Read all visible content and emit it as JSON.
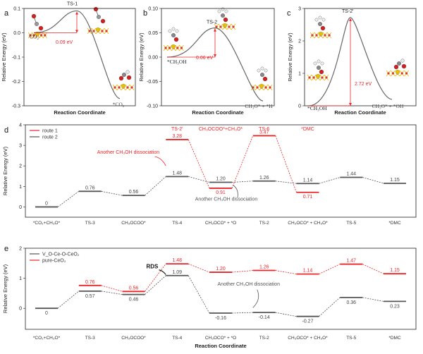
{
  "chart_data": [
    {
      "panel": "a",
      "type": "line",
      "xlabel": "Reaction Coordinate",
      "ylabel": "Relative Energy (eV)",
      "ylim": [
        -0.3,
        0.1
      ],
      "yticks": [
        "-0.3",
        "-0.2",
        "-0.1",
        "0.0",
        "0.1"
      ],
      "states": [
        "CO₂",
        "TS-1",
        "*CO₂"
      ],
      "x": [
        0,
        0.5,
        1
      ],
      "y": [
        0.0,
        0.09,
        -0.27
      ],
      "barrier_label": "0.09 eV"
    },
    {
      "panel": "b",
      "type": "line",
      "xlabel": "Reaction Coordinate",
      "ylabel": "Relative Energy (eV)",
      "ylim": [
        -0.1,
        0.1
      ],
      "yticks": [
        "-0.10",
        "-0.05",
        "0.00",
        "0.05",
        "0.10"
      ],
      "states": [
        "*CH₃OH",
        "TS-2",
        "CH₃O* + *H"
      ],
      "x": [
        0,
        0.5,
        1
      ],
      "y": [
        0.0,
        0.06,
        -0.09
      ],
      "barrier_label": "0.06 eV"
    },
    {
      "panel": "c",
      "type": "line",
      "xlabel": "Reaction Coordinate",
      "ylabel": "Relative Energy (eV)",
      "ylim": [
        0,
        3
      ],
      "yticks": [
        "0",
        "1",
        "2",
        "3"
      ],
      "states": [
        "*CH₃OH",
        "TS-2'",
        "CH₃O* + *OH"
      ],
      "x": [
        0,
        0.5,
        1
      ],
      "y": [
        0.0,
        2.72,
        0.2
      ],
      "barrier_label": "2.72 eV"
    },
    {
      "panel": "d",
      "type": "line",
      "xlabel": "",
      "ylabel": "Relative Energy (eV)",
      "ylim": [
        -0.5,
        4
      ],
      "yticks": [
        "0",
        "1",
        "2",
        "3",
        "4"
      ],
      "categories": [
        "*CO₂+CH₃O*",
        "TS-3",
        "CH₃OCOO*",
        "TS-4",
        "CH₃OCO* + *O",
        "TS-2",
        "CH₃OCO* + CH₃O*",
        "TS-5",
        "*DMC"
      ],
      "series": [
        {
          "name": "route 1",
          "color": "#e8262a",
          "points": [
            [
              3,
              3.28
            ],
            [
              4,
              0.91
            ],
            [
              5,
              3.47
            ],
            [
              6,
              0.71
            ]
          ],
          "labels": [
            "3.28",
            "0.91",
            "3.47",
            "0.71"
          ],
          "top_labels": [
            "TS-2'",
            "CH₃OCOO*+CH₃O*",
            "TS-6",
            "*DMC"
          ]
        },
        {
          "name": "route 2",
          "color": "#555555",
          "points": [
            [
              0,
              0
            ],
            [
              1,
              0.76
            ],
            [
              2,
              0.56
            ],
            [
              3,
              1.48
            ],
            [
              4,
              1.2
            ],
            [
              5,
              1.26
            ],
            [
              6,
              1.14
            ],
            [
              7,
              1.44
            ],
            [
              8,
              1.15
            ]
          ],
          "labels": [
            "0",
            "0.76",
            "0.56",
            "1.48",
            "1.20",
            "1.26",
            "1.14",
            "1.44",
            "1.15"
          ]
        }
      ],
      "annotations": [
        "Another CH₃OH dissociation",
        "Another CH₃OH dissociation"
      ]
    },
    {
      "panel": "e",
      "type": "line",
      "xlabel": "Reaction Coordinate",
      "ylabel": "Relative Energy (eV)",
      "ylim": [
        -0.7,
        2.0
      ],
      "yticks": [
        "-1",
        "0",
        "1",
        "2"
      ],
      "categories": [
        "*CO₂+CH₃O*",
        "TS-3",
        "CH₃OCOO*",
        "TS-4",
        "CH₃OCO* + *O",
        "TS-2",
        "CH₃OCO* + CH₃O*",
        "TS-5",
        "*DMC"
      ],
      "series": [
        {
          "name": "V_O-Ce-O-CeO₂",
          "color": "#555555",
          "points": [
            [
              0,
              0
            ],
            [
              1,
              0.57
            ],
            [
              2,
              0.46
            ],
            [
              3,
              1.09
            ],
            [
              4,
              -0.16
            ],
            [
              5,
              -0.14
            ],
            [
              6,
              -0.27
            ],
            [
              7,
              0.36
            ],
            [
              8,
              0.23
            ]
          ],
          "labels": [
            "0",
            "0.57",
            "0.46",
            "1.09",
            "-0.16",
            "-0.14",
            "-0.27",
            "0.36",
            "0.23"
          ]
        },
        {
          "name": "pure-CeO₂",
          "color": "#e8262a",
          "points": [
            [
              1,
              0.76
            ],
            [
              2,
              0.56
            ],
            [
              3,
              1.48
            ],
            [
              4,
              1.2
            ],
            [
              5,
              1.26
            ],
            [
              6,
              1.14
            ],
            [
              7,
              1.47
            ],
            [
              8,
              1.15
            ]
          ],
          "labels": [
            "0.76",
            "0.56",
            "1.48",
            "1.20",
            "1.26",
            "1.14",
            "1.47",
            "1.15"
          ]
        }
      ],
      "annotations": [
        "RDS",
        "Another CH₃OH dissociation"
      ]
    }
  ]
}
